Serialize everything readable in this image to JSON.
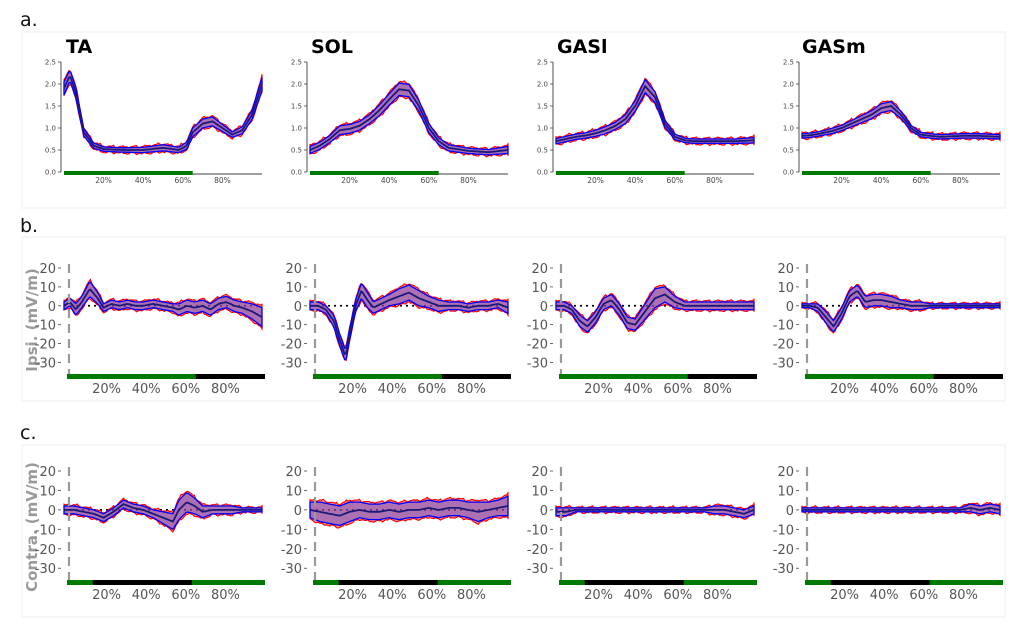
{
  "panel_labels": {
    "a": "a.",
    "b": "b.",
    "c": "c."
  },
  "muscles": [
    "TA",
    "SOL",
    "GASl",
    "GASm"
  ],
  "row_ylabels": {
    "b": "Ipsi. (mV/m)",
    "c": "Contra. (mV/m)"
  },
  "colors": {
    "condition_1": "#ff0000",
    "condition_2": "#0000ff",
    "band_fill": "#6a5acd",
    "mean_line": "#1a1a7a",
    "stance_bar": "#007a00",
    "axis_bar": "#000000",
    "event_dash": "#999999"
  },
  "chart_data": [
    {
      "row": "a",
      "muscle": "TA",
      "type": "area",
      "x_unit": "% gait cycle",
      "x": [
        0,
        3,
        6,
        10,
        15,
        20,
        30,
        40,
        50,
        58,
        62,
        65,
        70,
        75,
        80,
        85,
        90,
        95,
        100
      ],
      "mean": [
        1.9,
        2.2,
        1.8,
        0.9,
        0.6,
        0.52,
        0.5,
        0.5,
        0.55,
        0.5,
        0.6,
        0.9,
        1.1,
        1.15,
        1.0,
        0.85,
        0.95,
        1.3,
        2.0
      ],
      "spread": [
        0.15,
        0.12,
        0.12,
        0.08,
        0.06,
        0.05,
        0.05,
        0.06,
        0.07,
        0.06,
        0.08,
        0.1,
        0.1,
        0.1,
        0.08,
        0.06,
        0.08,
        0.1,
        0.15
      ],
      "ylim": [
        0,
        2.5
      ],
      "yticks": [
        "0.0",
        "0.5",
        "1.0",
        "1.5",
        "2.0",
        "2.5"
      ],
      "xticks": [
        "20%",
        "40%",
        "60%",
        "80%"
      ],
      "stance": [
        [
          0,
          65
        ]
      ],
      "event_line": false,
      "zero_line": false
    },
    {
      "row": "a",
      "muscle": "SOL",
      "type": "area",
      "x_unit": "% gait cycle",
      "x": [
        0,
        5,
        10,
        15,
        20,
        25,
        30,
        35,
        40,
        45,
        50,
        55,
        60,
        65,
        70,
        80,
        90,
        100
      ],
      "mean": [
        0.5,
        0.6,
        0.75,
        0.95,
        0.98,
        1.05,
        1.2,
        1.4,
        1.65,
        1.88,
        1.85,
        1.5,
        1.0,
        0.7,
        0.55,
        0.48,
        0.45,
        0.5
      ],
      "spread": [
        0.08,
        0.08,
        0.08,
        0.1,
        0.1,
        0.1,
        0.1,
        0.12,
        0.13,
        0.14,
        0.14,
        0.12,
        0.1,
        0.08,
        0.07,
        0.06,
        0.06,
        0.08
      ],
      "ylim": [
        0,
        2.5
      ],
      "yticks": [
        "0.0",
        "0.5",
        "1.0",
        "1.5",
        "2.0",
        "2.5"
      ],
      "xticks": [
        "20%",
        "40%",
        "60%",
        "80%"
      ],
      "stance": [
        [
          0,
          65
        ]
      ],
      "event_line": false,
      "zero_line": false
    },
    {
      "row": "a",
      "muscle": "GASl",
      "type": "area",
      "x_unit": "% gait cycle",
      "x": [
        0,
        5,
        10,
        15,
        20,
        25,
        30,
        35,
        40,
        45,
        50,
        55,
        60,
        65,
        70,
        80,
        90,
        100
      ],
      "mean": [
        0.7,
        0.75,
        0.8,
        0.83,
        0.88,
        0.95,
        1.05,
        1.2,
        1.5,
        1.95,
        1.7,
        1.1,
        0.8,
        0.72,
        0.7,
        0.7,
        0.7,
        0.72
      ],
      "spread": [
        0.06,
        0.06,
        0.06,
        0.06,
        0.07,
        0.08,
        0.08,
        0.1,
        0.12,
        0.15,
        0.12,
        0.08,
        0.06,
        0.05,
        0.05,
        0.05,
        0.05,
        0.06
      ],
      "ylim": [
        0,
        2.5
      ],
      "yticks": [
        "0.0",
        "0.5",
        "1.0",
        "1.5",
        "2.0",
        "2.5"
      ],
      "xticks": [
        "20%",
        "40%",
        "60%",
        "80%"
      ],
      "stance": [
        [
          0,
          65
        ]
      ],
      "event_line": false,
      "zero_line": false
    },
    {
      "row": "a",
      "muscle": "GASm",
      "type": "area",
      "x_unit": "% gait cycle",
      "x": [
        0,
        5,
        10,
        15,
        20,
        25,
        30,
        35,
        40,
        45,
        50,
        55,
        60,
        65,
        70,
        80,
        90,
        100
      ],
      "mean": [
        0.82,
        0.84,
        0.88,
        0.93,
        1.0,
        1.1,
        1.2,
        1.3,
        1.45,
        1.5,
        1.3,
        1.0,
        0.85,
        0.82,
        0.8,
        0.82,
        0.82,
        0.8
      ],
      "spread": [
        0.05,
        0.05,
        0.05,
        0.06,
        0.06,
        0.07,
        0.08,
        0.09,
        0.1,
        0.1,
        0.08,
        0.06,
        0.05,
        0.05,
        0.05,
        0.05,
        0.05,
        0.05
      ],
      "ylim": [
        0,
        2.5
      ],
      "yticks": [
        "0.0",
        "0.5",
        "1.0",
        "1.5",
        "2.0",
        "2.5"
      ],
      "xticks": [
        "20%",
        "40%",
        "60%",
        "80%"
      ],
      "stance": [
        [
          0,
          65
        ]
      ],
      "event_line": false,
      "zero_line": false
    },
    {
      "row": "b",
      "muscle": "TA",
      "type": "area",
      "x_unit": "% gait cycle",
      "x": [
        0,
        3,
        6,
        9,
        13,
        17,
        20,
        24,
        28,
        32,
        36,
        40,
        45,
        50,
        55,
        58,
        62,
        66,
        70,
        74,
        78,
        82,
        86,
        90,
        95,
        100
      ],
      "mean": [
        0,
        2,
        -2,
        2,
        9,
        4,
        -1,
        1,
        0,
        1,
        0,
        0,
        1,
        0,
        -1,
        -2,
        0,
        -1,
        0,
        -2,
        1,
        2,
        0,
        -1,
        -3,
        -6
      ],
      "spread": [
        2,
        2,
        3,
        3,
        4,
        3,
        2,
        2,
        2,
        2,
        2,
        2,
        2,
        2,
        2,
        3,
        3,
        3,
        3,
        3,
        3,
        3,
        3,
        3,
        4,
        5
      ],
      "ylim": [
        -34,
        20
      ],
      "yticks": [
        "20",
        "10",
        "0",
        "-10",
        "-20",
        "-30"
      ],
      "xticks": [
        "20%",
        "40%",
        "60%",
        "80%"
      ],
      "stance": [
        [
          0,
          65
        ]
      ],
      "event_line": true,
      "zero_line": true
    },
    {
      "row": "b",
      "muscle": "SOL",
      "type": "area",
      "x_unit": "% gait cycle",
      "x": [
        0,
        4,
        8,
        12,
        15,
        18,
        20,
        23,
        26,
        29,
        32,
        36,
        40,
        45,
        50,
        55,
        60,
        65,
        70,
        75,
        80,
        85,
        90,
        95,
        100
      ],
      "mean": [
        0,
        0,
        -2,
        -8,
        -18,
        -27,
        -15,
        0,
        8,
        3,
        -1,
        1,
        3,
        5,
        7,
        4,
        2,
        0,
        0,
        0,
        -1,
        0,
        0,
        1,
        -1
      ],
      "spread": [
        2,
        2,
        2,
        3,
        3,
        3,
        3,
        3,
        4,
        4,
        3,
        3,
        3,
        4,
        4,
        4,
        3,
        3,
        2,
        2,
        2,
        2,
        2,
        2,
        3
      ],
      "ylim": [
        -34,
        20
      ],
      "yticks": [
        "20",
        "10",
        "0",
        "-10",
        "-20",
        "-30"
      ],
      "xticks": [
        "20%",
        "40%",
        "60%",
        "80%"
      ],
      "stance": [
        [
          0,
          65
        ]
      ],
      "event_line": true,
      "zero_line": true
    },
    {
      "row": "b",
      "muscle": "GASl",
      "type": "area",
      "x_unit": "% gait cycle",
      "x": [
        0,
        4,
        8,
        12,
        16,
        20,
        24,
        28,
        32,
        36,
        40,
        45,
        50,
        55,
        60,
        65,
        70,
        75,
        80,
        85,
        90,
        95,
        100
      ],
      "mean": [
        0,
        0,
        -2,
        -8,
        -11,
        -6,
        1,
        3,
        -2,
        -9,
        -10,
        -3,
        4,
        6,
        2,
        0,
        0,
        0,
        0,
        0,
        0,
        0,
        0
      ],
      "spread": [
        2,
        2,
        2,
        3,
        3,
        3,
        3,
        3,
        3,
        3,
        3,
        4,
        5,
        4,
        3,
        2,
        2,
        2,
        2,
        2,
        2,
        2,
        2
      ],
      "ylim": [
        -34,
        20
      ],
      "yticks": [
        "20",
        "10",
        "0",
        "-10",
        "-20",
        "-30"
      ],
      "xticks": [
        "20%",
        "40%",
        "60%",
        "80%"
      ],
      "stance": [
        [
          0,
          65
        ]
      ],
      "event_line": true,
      "zero_line": true
    },
    {
      "row": "b",
      "muscle": "GASm",
      "type": "area",
      "x_unit": "% gait cycle",
      "x": [
        0,
        4,
        8,
        12,
        16,
        20,
        24,
        28,
        32,
        36,
        40,
        45,
        50,
        55,
        60,
        65,
        70,
        75,
        80,
        85,
        90,
        95,
        100
      ],
      "mean": [
        0,
        0,
        -1,
        -6,
        -11,
        -4,
        5,
        8,
        2,
        3,
        3,
        2,
        1,
        0,
        0,
        0,
        0,
        0,
        0,
        0,
        0,
        0,
        0
      ],
      "spread": [
        1,
        1,
        2,
        3,
        3,
        3,
        3,
        3,
        3,
        3,
        3,
        3,
        2,
        2,
        2,
        1,
        1,
        1,
        1,
        1,
        1,
        1,
        1
      ],
      "ylim": [
        -34,
        20
      ],
      "yticks": [
        "20",
        "10",
        "0",
        "-10",
        "-20",
        "-30"
      ],
      "xticks": [
        "20%",
        "40%",
        "60%",
        "80%"
      ],
      "stance": [
        [
          0,
          65
        ]
      ],
      "event_line": true,
      "zero_line": true
    },
    {
      "row": "c",
      "muscle": "TA",
      "type": "area",
      "x_unit": "% gait cycle",
      "x": [
        0,
        5,
        10,
        15,
        20,
        25,
        30,
        35,
        40,
        45,
        50,
        55,
        58,
        62,
        66,
        70,
        75,
        80,
        85,
        90,
        95,
        100
      ],
      "mean": [
        0,
        0,
        -1,
        -2,
        -4,
        -1,
        3,
        1,
        0,
        -2,
        -4,
        -6,
        0,
        4,
        2,
        -1,
        0,
        0,
        0,
        0,
        0,
        0
      ],
      "spread": [
        2,
        2,
        2,
        2,
        2,
        2,
        2,
        2,
        2,
        2,
        3,
        4,
        5,
        5,
        4,
        3,
        2,
        2,
        2,
        1,
        1,
        1
      ],
      "ylim": [
        -34,
        20
      ],
      "yticks": [
        "20",
        "10",
        "0",
        "-10",
        "-20",
        "-30"
      ],
      "xticks": [
        "20%",
        "40%",
        "60%",
        "80%"
      ],
      "stance": [
        [
          0,
          13
        ],
        [
          63,
          100
        ]
      ],
      "event_line": true,
      "zero_line": true
    },
    {
      "row": "c",
      "muscle": "SOL",
      "type": "area",
      "x_unit": "% gait cycle",
      "x": [
        0,
        5,
        10,
        15,
        20,
        25,
        30,
        35,
        40,
        45,
        50,
        55,
        60,
        65,
        70,
        75,
        80,
        85,
        90,
        95,
        100
      ],
      "mean": [
        0,
        -1,
        -2,
        -3,
        -1,
        0,
        -1,
        -1,
        0,
        -1,
        0,
        0,
        1,
        0,
        1,
        1,
        0,
        -1,
        0,
        1,
        2
      ],
      "spread": [
        4,
        5,
        5,
        5,
        5,
        4,
        4,
        4,
        4,
        4,
        4,
        4,
        4,
        4,
        4,
        4,
        4,
        5,
        4,
        4,
        5
      ],
      "ylim": [
        -34,
        20
      ],
      "yticks": [
        "20",
        "10",
        "0",
        "-10",
        "-20",
        "-30"
      ],
      "xticks": [
        "20%",
        "40%",
        "60%",
        "80%"
      ],
      "stance": [
        [
          0,
          13
        ],
        [
          63,
          100
        ]
      ],
      "event_line": true,
      "zero_line": true
    },
    {
      "row": "c",
      "muscle": "GASl",
      "type": "area",
      "x_unit": "% gait cycle",
      "x": [
        0,
        5,
        10,
        15,
        20,
        25,
        30,
        35,
        40,
        45,
        50,
        55,
        60,
        65,
        70,
        75,
        80,
        85,
        90,
        95,
        100
      ],
      "mean": [
        -1,
        -1,
        0,
        0,
        0,
        0,
        0,
        0,
        0,
        0,
        0,
        0,
        0,
        0,
        0,
        0,
        0,
        0,
        -1,
        -2,
        0
      ],
      "spread": [
        2,
        2,
        1,
        1,
        1,
        1,
        1,
        1,
        1,
        1,
        1,
        1,
        1,
        1,
        1,
        1,
        2,
        2,
        2,
        2,
        2
      ],
      "ylim": [
        -34,
        20
      ],
      "yticks": [
        "20",
        "10",
        "0",
        "-10",
        "-20",
        "-30"
      ],
      "xticks": [
        "20%",
        "40%",
        "60%",
        "80%"
      ],
      "stance": [
        [
          0,
          13
        ],
        [
          63,
          100
        ]
      ],
      "event_line": true,
      "zero_line": true
    },
    {
      "row": "c",
      "muscle": "GASm",
      "type": "area",
      "x_unit": "% gait cycle",
      "x": [
        0,
        5,
        10,
        15,
        20,
        25,
        30,
        35,
        40,
        45,
        50,
        55,
        60,
        65,
        70,
        75,
        80,
        85,
        90,
        95,
        100
      ],
      "mean": [
        0,
        0,
        0,
        0,
        0,
        0,
        0,
        0,
        0,
        0,
        0,
        0,
        0,
        0,
        0,
        0,
        0,
        1,
        0,
        1,
        0
      ],
      "spread": [
        1,
        1,
        1,
        1,
        1,
        1,
        1,
        1,
        1,
        1,
        1,
        1,
        1,
        1,
        1,
        1,
        1,
        2,
        2,
        2,
        2
      ],
      "ylim": [
        -34,
        20
      ],
      "yticks": [
        "20",
        "10",
        "0",
        "-10",
        "-20",
        "-30"
      ],
      "xticks": [
        "20%",
        "40%",
        "60%",
        "80%"
      ],
      "stance": [
        [
          0,
          13
        ],
        [
          63,
          100
        ]
      ],
      "event_line": true,
      "zero_line": true
    }
  ]
}
